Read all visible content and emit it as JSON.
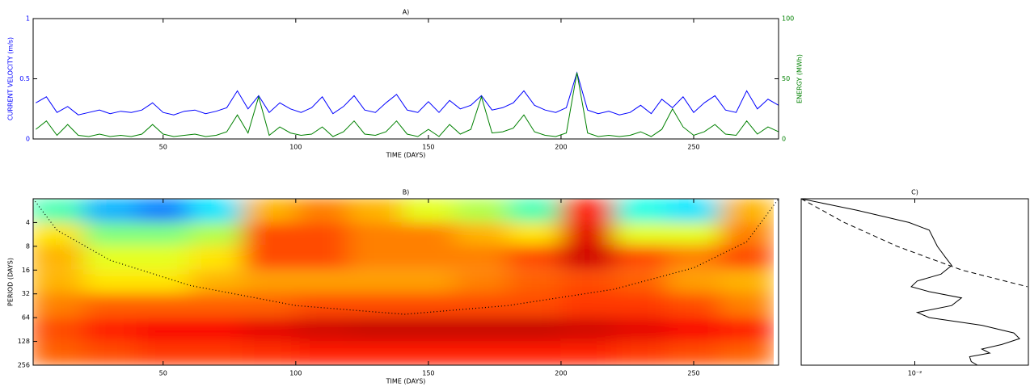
{
  "chart_data": [
    {
      "type": "line",
      "title": "A)",
      "xlabel": "TIME (DAYS)",
      "ylabel": "CURRENT VELOCITY (m/s)",
      "y2label": "ENERGY (MWh)",
      "x": [
        2,
        6,
        10,
        14,
        18,
        22,
        26,
        30,
        34,
        38,
        42,
        46,
        50,
        54,
        58,
        62,
        66,
        70,
        74,
        78,
        82,
        86,
        90,
        94,
        98,
        102,
        106,
        110,
        114,
        118,
        122,
        126,
        130,
        134,
        138,
        142,
        146,
        150,
        154,
        158,
        162,
        166,
        170,
        174,
        178,
        182,
        186,
        190,
        194,
        198,
        202,
        206,
        210,
        214,
        218,
        222,
        226,
        230,
        234,
        238,
        242,
        246,
        250,
        254,
        258,
        262,
        266,
        270,
        274,
        278,
        282
      ],
      "series": [
        {
          "color": "#0000ff",
          "values": [
            0.3,
            0.35,
            0.22,
            0.27,
            0.2,
            0.22,
            0.24,
            0.21,
            0.23,
            0.22,
            0.24,
            0.3,
            0.22,
            0.2,
            0.23,
            0.24,
            0.21,
            0.23,
            0.26,
            0.4,
            0.25,
            0.36,
            0.22,
            0.3,
            0.25,
            0.22,
            0.26,
            0.35,
            0.21,
            0.27,
            0.36,
            0.24,
            0.22,
            0.3,
            0.37,
            0.24,
            0.22,
            0.31,
            0.22,
            0.32,
            0.25,
            0.28,
            0.36,
            0.24,
            0.26,
            0.3,
            0.4,
            0.28,
            0.24,
            0.22,
            0.26,
            0.55,
            0.24,
            0.21,
            0.23,
            0.2,
            0.22,
            0.28,
            0.21,
            0.33,
            0.26,
            0.35,
            0.22,
            0.3,
            0.36,
            0.24,
            0.22,
            0.4,
            0.25,
            0.33,
            0.28
          ]
        },
        {
          "color": "#008000",
          "axis": "y2",
          "values": [
            8,
            15,
            3,
            12,
            3,
            2,
            4,
            2,
            3,
            2,
            4,
            12,
            4,
            2,
            3,
            4,
            2,
            3,
            6,
            20,
            5,
            35,
            3,
            10,
            5,
            3,
            4,
            10,
            2,
            6,
            15,
            4,
            3,
            6,
            15,
            4,
            2,
            8,
            2,
            12,
            4,
            8,
            35,
            5,
            6,
            9,
            20,
            6,
            3,
            2,
            5,
            55,
            5,
            2,
            3,
            2,
            3,
            6,
            2,
            8,
            25,
            10,
            3,
            6,
            12,
            4,
            3,
            15,
            4,
            10,
            6
          ]
        }
      ],
      "xlim": [
        1,
        282
      ],
      "xticks": [
        50,
        100,
        150,
        200,
        250
      ],
      "ylim": [
        0,
        1
      ],
      "yticks": [
        0,
        0.5,
        1
      ],
      "y2lim": [
        0,
        100
      ],
      "y2ticks": [
        0,
        50,
        100
      ]
    },
    {
      "type": "heatmap",
      "title": "B)",
      "xlabel": "TIME (DAYS)",
      "ylabel": "PERIOD (DAYS)",
      "colormap": "jet",
      "ylog": true,
      "yreverse": true,
      "x": [
        10,
        30,
        50,
        70,
        90,
        110,
        130,
        150,
        170,
        190,
        210,
        230,
        250,
        270
      ],
      "y": [
        2.8,
        5.7,
        11,
        23,
        45,
        91,
        181
      ],
      "z": [
        [
          0.45,
          0.3,
          0.25,
          0.35,
          0.7,
          0.75,
          0.7,
          0.6,
          0.55,
          0.45,
          0.85,
          0.4,
          0.35,
          0.7
        ],
        [
          0.65,
          0.5,
          0.5,
          0.55,
          0.8,
          0.8,
          0.75,
          0.75,
          0.7,
          0.65,
          0.9,
          0.6,
          0.6,
          0.75
        ],
        [
          0.7,
          0.6,
          0.6,
          0.65,
          0.8,
          0.8,
          0.75,
          0.75,
          0.75,
          0.8,
          0.92,
          0.8,
          0.75,
          0.8
        ],
        [
          0.7,
          0.65,
          0.65,
          0.7,
          0.72,
          0.72,
          0.72,
          0.72,
          0.75,
          0.78,
          0.8,
          0.78,
          0.72,
          0.7
        ],
        [
          0.75,
          0.78,
          0.78,
          0.78,
          0.78,
          0.8,
          0.8,
          0.8,
          0.8,
          0.8,
          0.82,
          0.82,
          0.8,
          0.75
        ],
        [
          0.8,
          0.85,
          0.88,
          0.88,
          0.9,
          0.92,
          0.93,
          0.93,
          0.93,
          0.93,
          0.92,
          0.9,
          0.88,
          0.85
        ],
        [
          0.78,
          0.8,
          0.82,
          0.82,
          0.83,
          0.85,
          0.85,
          0.85,
          0.85,
          0.85,
          0.84,
          0.82,
          0.8,
          0.78
        ]
      ],
      "coi": {
        "x": [
          1,
          10,
          30,
          60,
          100,
          141,
          180,
          220,
          250,
          270,
          282
        ],
        "values": [
          2,
          5,
          12,
          25,
          45,
          58,
          45,
          28,
          15,
          7,
          2
        ]
      },
      "xlim": [
        1,
        282
      ],
      "xticks": [
        50,
        100,
        150,
        200,
        250
      ],
      "ylim": [
        2,
        256
      ],
      "yticks": [
        4,
        8,
        16,
        32,
        64,
        128,
        256
      ]
    },
    {
      "type": "line",
      "orientation": "vertical",
      "title": "C)",
      "xlog": true,
      "ylog": true,
      "yreverse": true,
      "series": [
        {
          "color": "#000000",
          "values": [
            0.001,
            0.0031,
            0.0089,
            0.0134,
            0.0158,
            0.0186,
            0.0211,
            0.017,
            0.0105,
            0.0093,
            0.0134,
            0.0258,
            0.0211,
            0.0105,
            0.0134,
            0.0389,
            0.0745,
            0.0836,
            0.0583,
            0.0389,
            0.0457,
            0.0304,
            0.0314,
            0.0356
          ],
          "periods": [
            2,
            2.8,
            4,
            5,
            8,
            11,
            14,
            18,
            22,
            26,
            30,
            36,
            45,
            55,
            64,
            80,
            100,
            118,
            140,
            160,
            180,
            200,
            230,
            256
          ]
        },
        {
          "color": "#000000",
          "dash": true,
          "values": [
            0.001,
            0.0024,
            0.007,
            0.026,
            0.098
          ],
          "periods": [
            2,
            4,
            8,
            16,
            26
          ]
        }
      ],
      "xlim": [
        0.001,
        0.1
      ],
      "xticks": [
        {
          "value": 0.01,
          "label": "10⁻²"
        }
      ],
      "ylim": [
        2,
        256
      ]
    }
  ]
}
